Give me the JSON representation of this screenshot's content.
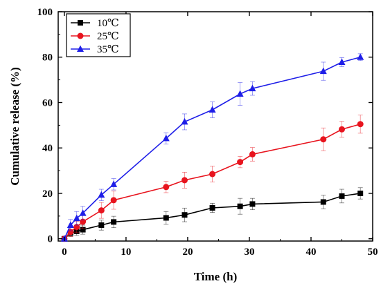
{
  "chart_data": {
    "type": "line",
    "title": "",
    "xlabel": "Time (h)",
    "ylabel": "Cumulative release (%)",
    "xlim": [
      -1,
      50
    ],
    "ylim": [
      -1,
      100
    ],
    "xticks": [
      0,
      10,
      20,
      30,
      40,
      50
    ],
    "yticks": [
      0,
      20,
      40,
      60,
      80,
      100
    ],
    "grid": false,
    "legend": "top-left",
    "x": [
      0,
      1,
      2,
      3,
      6,
      8,
      16.5,
      19.5,
      24,
      28.5,
      30.5,
      42,
      45,
      48
    ],
    "series": [
      {
        "name": "10℃",
        "color": "#000000",
        "marker": "square",
        "values": [
          0,
          2.5,
          3.3,
          4,
          6,
          7.4,
          9.2,
          10.5,
          13.6,
          14.3,
          15.3,
          16.2,
          18.8,
          20
        ],
        "errors": [
          0.5,
          1.5,
          1.8,
          2,
          2.2,
          2.5,
          2.8,
          3,
          2,
          3.5,
          2.5,
          3,
          3,
          2.5
        ]
      },
      {
        "name": "25℃",
        "color": "#e8141e",
        "marker": "circle",
        "values": [
          0,
          3,
          5.2,
          7.5,
          12.5,
          17,
          22.8,
          25.8,
          28.5,
          33.8,
          37.2,
          43.8,
          48.2,
          50.5
        ],
        "errors": [
          0.5,
          2,
          2.5,
          3,
          3.5,
          4,
          2.5,
          3.5,
          3.5,
          2.5,
          3,
          5,
          3.5,
          4
        ]
      },
      {
        "name": "35℃",
        "color": "#1e1ee8",
        "marker": "triangle",
        "values": [
          0,
          6,
          9,
          11.3,
          19.3,
          24,
          44.2,
          51.5,
          56.8,
          63.8,
          66.2,
          73.8,
          77.8,
          80
        ],
        "errors": [
          0.5,
          2.5,
          3,
          3,
          2.5,
          2.5,
          2.5,
          3.5,
          3.5,
          5,
          3,
          4,
          2,
          1.5
        ]
      }
    ]
  }
}
